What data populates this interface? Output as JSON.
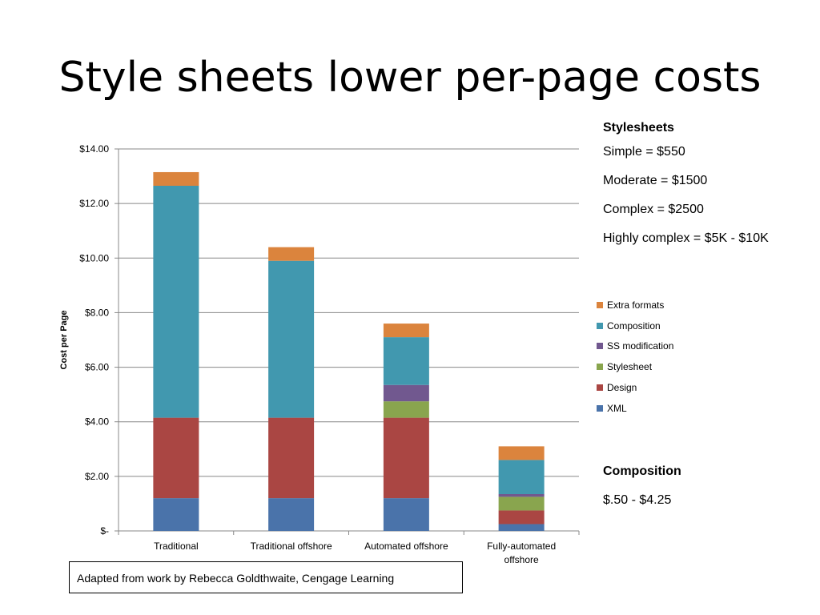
{
  "slide": {
    "title": "Style sheets lower per-page costs",
    "credit": "Adapted from work by Rebecca Goldthwaite, Cengage Learning"
  },
  "stylesheets_panel": {
    "heading": "Stylesheets",
    "lines": [
      "Simple = $550",
      "Moderate = $1500",
      "Complex = $2500",
      "Highly complex = $5K - $10K"
    ]
  },
  "composition_panel": {
    "heading": "Composition",
    "range": "$.50 - $4.25"
  },
  "chart_data": {
    "type": "bar",
    "stacked": true,
    "title": "",
    "xlabel": "",
    "ylabel": "Cost per Page",
    "ylim": [
      0,
      14
    ],
    "yticks": [
      0,
      2,
      4,
      6,
      8,
      10,
      12,
      14
    ],
    "ytick_labels": [
      "$-",
      "$2.00",
      "$4.00",
      "$6.00",
      "$8.00",
      "$10.00",
      "$12.00",
      "$14.00"
    ],
    "grid": true,
    "legend_position": "right",
    "categories": [
      "Traditional",
      "Traditional offshore",
      "Automated offshore",
      "Fully-automated offshore"
    ],
    "category_lines": [
      [
        "Traditional"
      ],
      [
        "Traditional offshore"
      ],
      [
        "Automated offshore"
      ],
      [
        "Fully-automated",
        "offshore"
      ]
    ],
    "series": [
      {
        "name": "XML",
        "color": "#4a73aa",
        "values": [
          1.2,
          1.2,
          1.2,
          0.25
        ]
      },
      {
        "name": "Design",
        "color": "#aa4643",
        "values": [
          2.95,
          2.95,
          2.95,
          0.5
        ]
      },
      {
        "name": "Stylesheet",
        "color": "#89a54e",
        "values": [
          0,
          0,
          0.6,
          0.5
        ]
      },
      {
        "name": "SS modification",
        "color": "#71588f",
        "values": [
          0,
          0,
          0.6,
          0.1
        ]
      },
      {
        "name": "Composition",
        "color": "#4198af",
        "values": [
          8.5,
          5.75,
          1.75,
          1.25
        ]
      },
      {
        "name": "Extra formats",
        "color": "#db843d",
        "values": [
          0.5,
          0.5,
          0.5,
          0.5
        ]
      }
    ]
  }
}
